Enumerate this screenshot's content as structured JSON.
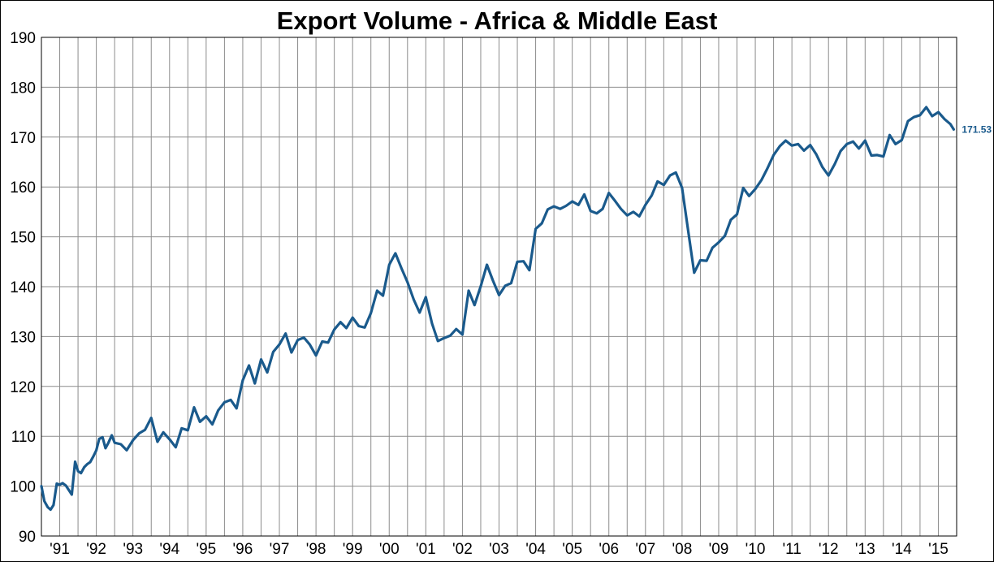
{
  "chart_data": {
    "type": "line",
    "title": "Export Volume - Africa & Middle East",
    "xlabel": "",
    "ylabel": "",
    "ylim": [
      90,
      190
    ],
    "y_ticks": [
      "90",
      "100",
      "110",
      "120",
      "130",
      "140",
      "150",
      "160",
      "170",
      "180",
      "190"
    ],
    "x_tick_labels": [
      "'91",
      "'92",
      "'93",
      "'94",
      "'95",
      "'96",
      "'97",
      "'98",
      "'99",
      "'00",
      "'01",
      "'02",
      "'03",
      "'04",
      "'05",
      "'06",
      "'07",
      "'08",
      "'09",
      "'10",
      "'11",
      "'12",
      "'13",
      "'14",
      "'15"
    ],
    "x_range": [
      1991.0,
      2016.0
    ],
    "grid": true,
    "line_color": "#1a5a8c",
    "last_value_label": "171.53",
    "series": [
      {
        "x": [
          1991.0,
          1991.08,
          1991.17,
          1991.25,
          1991.33,
          1991.42,
          1991.5,
          1991.58,
          1991.67,
          1991.75,
          1991.83,
          1991.92,
          1992.0,
          1992.08,
          1992.17,
          1992.25,
          1992.33,
          1992.42,
          1992.5,
          1992.58,
          1992.67,
          1992.75,
          1992.83,
          1992.92,
          1993.0,
          1993.17,
          1993.33,
          1993.5,
          1993.67,
          1993.83,
          1994.0,
          1994.17,
          1994.33,
          1994.5,
          1994.67,
          1994.83,
          1995.0,
          1995.17,
          1995.33,
          1995.5,
          1995.67,
          1995.83,
          1996.0,
          1996.17,
          1996.33,
          1996.5,
          1996.67,
          1996.83,
          1997.0,
          1997.17,
          1997.33,
          1997.5,
          1997.67,
          1997.83,
          1998.0,
          1998.17,
          1998.33,
          1998.5,
          1998.67,
          1998.83,
          1999.0,
          1999.17,
          1999.33,
          1999.5,
          1999.67,
          1999.83,
          2000.0,
          2000.17,
          2000.33,
          2000.5,
          2000.67,
          2000.83,
          2001.0,
          2001.17,
          2001.33,
          2001.5,
          2001.67,
          2001.83,
          2002.0,
          2002.17,
          2002.33,
          2002.5,
          2002.67,
          2002.83,
          2003.0,
          2003.17,
          2003.33,
          2003.5,
          2003.67,
          2003.83,
          2004.0,
          2004.17,
          2004.33,
          2004.5,
          2004.67,
          2004.83,
          2005.0,
          2005.17,
          2005.33,
          2005.5,
          2005.67,
          2005.83,
          2006.0,
          2006.17,
          2006.33,
          2006.5,
          2006.67,
          2006.83,
          2007.0,
          2007.17,
          2007.33,
          2007.5,
          2007.67,
          2007.83,
          2008.0,
          2008.17,
          2008.33,
          2008.5,
          2008.67,
          2008.83,
          2009.0,
          2009.17,
          2009.33,
          2009.5,
          2009.67,
          2009.83,
          2010.0,
          2010.17,
          2010.33,
          2010.5,
          2010.67,
          2010.83,
          2011.0,
          2011.17,
          2011.33,
          2011.5,
          2011.67,
          2011.83,
          2012.0,
          2012.17,
          2012.33,
          2012.5,
          2012.67,
          2012.83,
          2013.0,
          2013.17,
          2013.33,
          2013.5,
          2013.67,
          2013.83,
          2014.0,
          2014.17,
          2014.33,
          2014.5,
          2014.67,
          2014.83,
          2015.0,
          2015.17,
          2015.33,
          2015.5,
          2015.67,
          2015.83,
          2015.92
        ],
        "values": [
          100.0,
          97.0,
          95.8,
          95.3,
          96.2,
          100.5,
          100.3,
          100.6,
          100.1,
          99.2,
          98.3,
          104.9,
          103.0,
          102.6,
          103.8,
          104.4,
          104.8,
          106.0,
          107.2,
          109.5,
          109.8,
          107.6,
          108.7,
          110.2,
          108.7,
          108.4,
          107.2,
          109.2,
          110.6,
          111.3,
          113.7,
          108.9,
          110.8,
          109.4,
          107.8,
          111.6,
          111.2,
          115.8,
          112.9,
          114.0,
          112.4,
          115.2,
          116.8,
          117.3,
          115.6,
          121.2,
          124.2,
          120.6,
          125.4,
          122.8,
          126.9,
          128.4,
          130.6,
          126.8,
          129.3,
          129.8,
          128.4,
          126.2,
          129.0,
          128.8,
          131.4,
          132.9,
          131.7,
          133.8,
          132.1,
          131.8,
          134.7,
          139.2,
          138.2,
          144.4,
          146.7,
          143.8,
          140.9,
          137.4,
          134.8,
          137.9,
          132.6,
          129.1,
          129.7,
          130.2,
          131.5,
          130.4,
          139.2,
          136.3,
          140.1,
          144.4,
          141.3,
          138.3,
          140.2,
          140.7,
          145.0,
          145.1,
          143.3,
          151.6,
          152.7,
          155.5,
          156.1,
          155.6,
          156.2,
          157.1,
          156.4,
          158.5,
          155.2,
          154.7,
          155.6,
          158.8,
          157.2,
          155.6,
          154.3,
          155.0,
          154.1,
          156.4,
          158.3,
          161.1,
          160.4,
          162.3,
          162.9,
          159.8,
          151.0,
          142.8,
          145.3,
          145.2,
          147.8,
          148.9,
          150.2,
          153.4,
          154.5,
          159.8,
          158.2,
          159.6,
          161.4,
          163.7,
          166.4,
          168.2,
          169.3,
          168.3,
          168.6,
          167.3,
          168.4,
          166.5,
          164.0,
          162.3,
          164.6,
          167.2,
          168.6,
          169.1,
          167.7,
          169.3,
          166.3,
          166.4,
          166.1,
          170.4,
          168.6,
          169.4,
          173.2,
          174.0,
          174.4,
          176.0,
          174.2,
          175.0,
          173.6,
          172.6,
          171.53
        ]
      }
    ]
  }
}
